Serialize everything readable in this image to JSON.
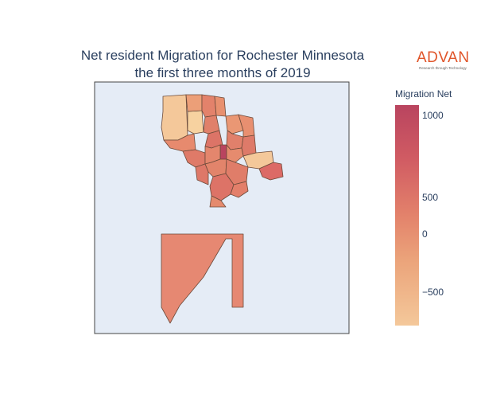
{
  "title": {
    "line1": "Net resident Migration for Rochester Minnesota",
    "line2": "the first three months of 2019"
  },
  "logo": {
    "name": "ADVAN",
    "tagline": "Research through Technology"
  },
  "legend": {
    "title": "Migration Net",
    "ticks": [
      "1000",
      "500",
      "0",
      "−500"
    ],
    "range": [
      -780,
      1120
    ],
    "colorscale": [
      "#f4c89a",
      "#eba37a",
      "#e3826b",
      "#d15c63",
      "#b9445f"
    ]
  },
  "map": {
    "background": "#e5ecf6",
    "frame_color": "#444444",
    "border_color": "#6b4a3a"
  }
}
